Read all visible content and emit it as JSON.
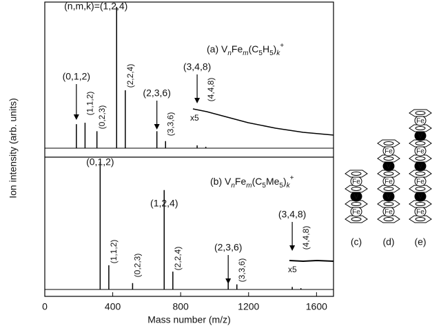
{
  "chart_data": [
    {
      "type": "stem",
      "title": [
        {
          "text": "(a) V"
        },
        {
          "text": "n",
          "style": "sub-italic"
        },
        {
          "text": "Fe"
        },
        {
          "text": "m",
          "style": "sub-italic"
        },
        {
          "text": "(C"
        },
        {
          "text": "5",
          "style": "sub"
        },
        {
          "text": "H"
        },
        {
          "text": "5",
          "style": "sub"
        },
        {
          "text": ")"
        },
        {
          "text": "k",
          "style": "sub-italic"
        },
        {
          "text": "+",
          "style": "sup"
        }
      ],
      "x": [
        186,
        237,
        307,
        423,
        474,
        660,
        711,
        897,
        948
      ],
      "values": [
        17,
        18,
        12,
        100,
        41,
        12,
        5,
        2,
        1
      ],
      "labels": [
        "(0,1,2)",
        "(1,1,2)",
        "(0,2,3)",
        "(n,m,k)=(1,2,4)",
        "(2,2,4)",
        "(2,3,6)",
        "(3,3,6)",
        "(3,4,8)",
        "(4,4,8)"
      ],
      "inset_label": "x5",
      "color": "#000000",
      "xlim": [
        0,
        1700
      ],
      "ylim": [
        0,
        100
      ]
    },
    {
      "type": "stem",
      "title": [
        {
          "text": "(b) V"
        },
        {
          "text": "n",
          "style": "sub-italic"
        },
        {
          "text": "Fe"
        },
        {
          "text": "m",
          "style": "sub-italic"
        },
        {
          "text": "(C"
        },
        {
          "text": "5",
          "style": "sub"
        },
        {
          "text": "Me"
        },
        {
          "text": "5",
          "style": "sub"
        },
        {
          "text": ")"
        },
        {
          "text": "k",
          "style": "sub-italic"
        },
        {
          "text": "+",
          "style": "sup"
        }
      ],
      "x": [
        326,
        377,
        517,
        703,
        754,
        1080,
        1131,
        1457,
        1508
      ],
      "values": [
        100,
        19,
        5,
        78,
        14,
        8,
        4,
        2,
        1
      ],
      "labels": [
        "(0,1,2)",
        "(1,1,2)",
        "(0,2,3)",
        "(1,2,4)",
        "(2,2,4)",
        "(2,3,6)",
        "(3,3,6)",
        "(3,4,8)",
        "(4,4,8)"
      ],
      "inset_label": "x5",
      "color": "#000000",
      "xlim": [
        0,
        1700
      ],
      "ylim": [
        0,
        100
      ],
      "xticks": [
        0,
        400,
        800,
        1200,
        1600
      ],
      "xlabel": "Mass number (m/z)"
    }
  ],
  "ylabel": "Ion intensity (arb. units)",
  "diagrams": [
    {
      "label": "(c)",
      "metals": [
        "Fe",
        "V",
        "Fe"
      ]
    },
    {
      "label": "(d)",
      "metals": [
        "Fe",
        "V",
        "Fe",
        "V",
        "Fe"
      ]
    },
    {
      "label": "(e)",
      "metals": [
        "Fe",
        "V",
        "Fe",
        "V",
        "Fe",
        "V",
        "Fe"
      ]
    }
  ]
}
